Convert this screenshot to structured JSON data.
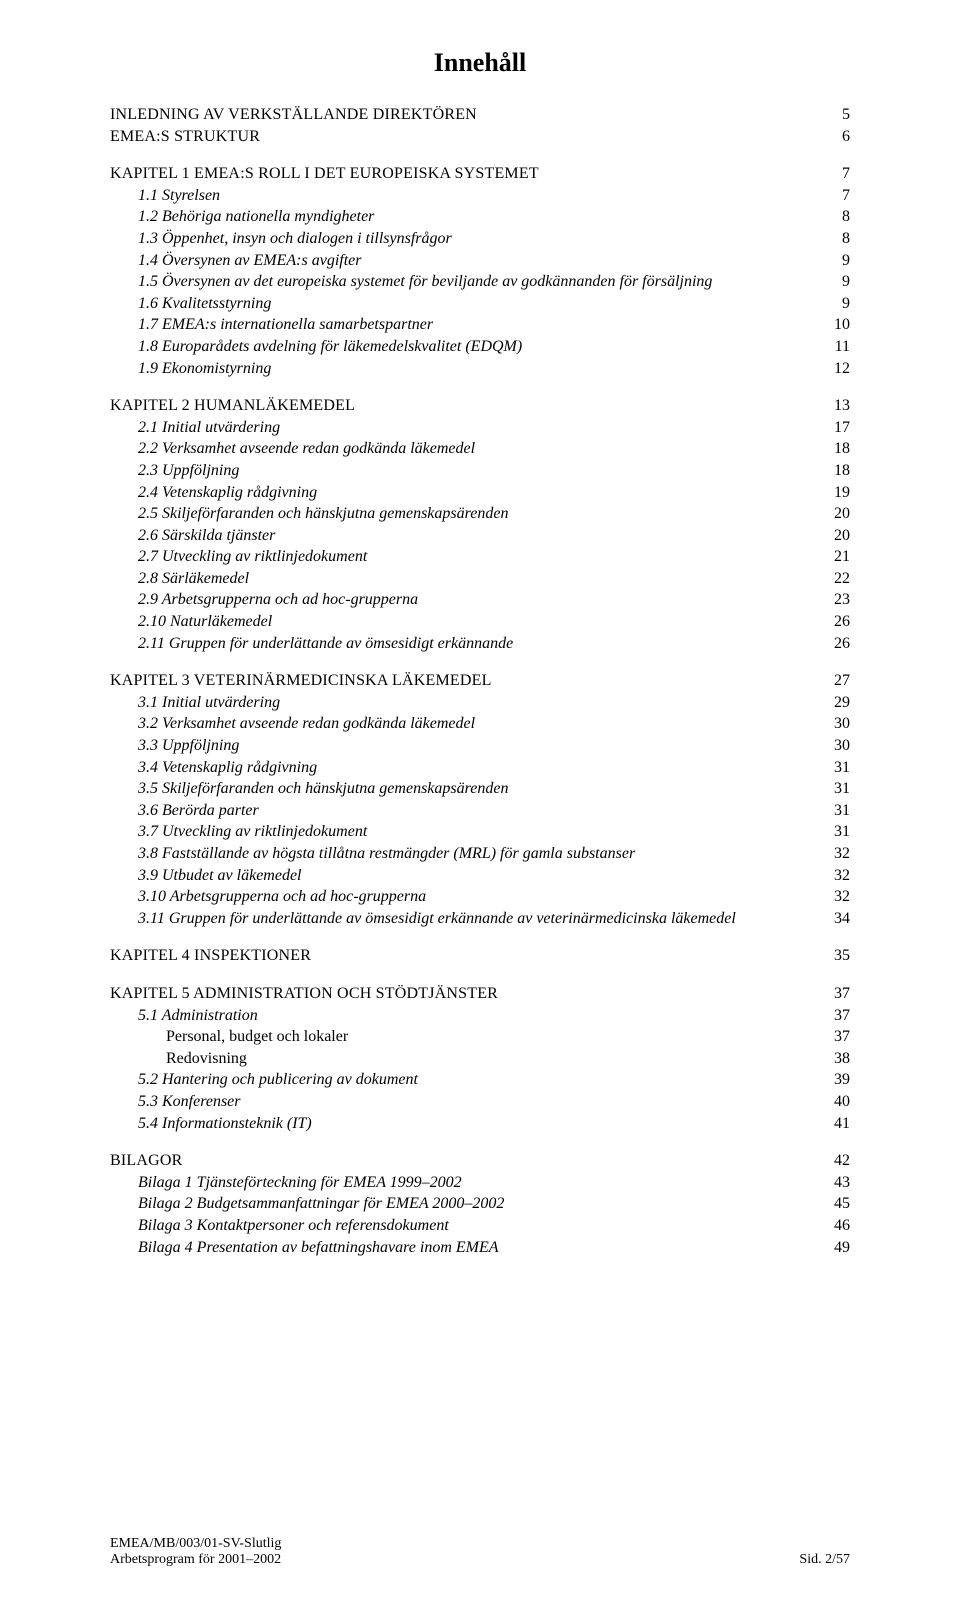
{
  "title": "Innehåll",
  "front": [
    {
      "label": "INLEDNING AV VERKSTÄLLANDE DIREKTÖREN",
      "page": "5"
    },
    {
      "label": "EMEA:S STRUKTUR",
      "page": "6"
    }
  ],
  "chapter1": {
    "heading": {
      "label": "KAPITEL 1  EMEA:S ROLL I DET EUROPEISKA SYSTEMET",
      "page": "7"
    },
    "items": [
      {
        "label": "1.1   Styrelsen",
        "page": "7"
      },
      {
        "label": "1.2   Behöriga nationella myndigheter",
        "page": "8"
      },
      {
        "label": "1.3   Öppenhet, insyn och dialogen i tillsynsfrågor",
        "page": "8"
      },
      {
        "label": "1.4   Översynen av EMEA:s avgifter",
        "page": "9"
      },
      {
        "label": "1.5   Översynen av det europeiska systemet för beviljande av godkännanden för försäljning",
        "page": "9"
      },
      {
        "label": "1.6   Kvalitetsstyrning",
        "page": "9"
      },
      {
        "label": "1.7   EMEA:s internationella samarbetspartner",
        "page": "10"
      },
      {
        "label": "1.8   Europarådets avdelning för läkemedelskvalitet (EDQM)",
        "page": "11"
      },
      {
        "label": "1.9   Ekonomistyrning",
        "page": "12"
      }
    ]
  },
  "chapter2": {
    "heading": {
      "label": "KAPITEL 2  HUMANLÄKEMEDEL",
      "page": "13"
    },
    "items": [
      {
        "label": "2.1   Initial utvärdering",
        "page": "17"
      },
      {
        "label": "2.2   Verksamhet avseende redan godkända läkemedel",
        "page": "18"
      },
      {
        "label": "2.3   Uppföljning",
        "page": "18"
      },
      {
        "label": "2.4   Vetenskaplig rådgivning",
        "page": "19"
      },
      {
        "label": "2.5   Skiljeförfaranden och hänskjutna gemenskapsärenden",
        "page": "20"
      },
      {
        "label": "2.6   Särskilda tjänster",
        "page": "20"
      },
      {
        "label": "2.7   Utveckling av riktlinjedokument",
        "page": "21"
      },
      {
        "label": "2.8   Särläkemedel",
        "page": "22"
      },
      {
        "label": "2.9   Arbetsgrupperna och ad hoc-grupperna",
        "page": "23"
      },
      {
        "label": "2.10   Naturläkemedel",
        "page": "26"
      },
      {
        "label": "2.11   Gruppen för underlättande av ömsesidigt erkännande",
        "page": "26"
      }
    ]
  },
  "chapter3": {
    "heading": {
      "label": "KAPITEL 3  VETERINÄRMEDICINSKA LÄKEMEDEL",
      "page": "27"
    },
    "items": [
      {
        "label": "3.1   Initial utvärdering",
        "page": "29"
      },
      {
        "label": "3.2   Verksamhet avseende redan godkända läkemedel",
        "page": "30"
      },
      {
        "label": "3.3   Uppföljning",
        "page": "30"
      },
      {
        "label": "3.4   Vetenskaplig rådgivning",
        "page": "31"
      },
      {
        "label": "3.5   Skiljeförfaranden och hänskjutna gemenskapsärenden",
        "page": "31"
      },
      {
        "label": "3.6   Berörda parter",
        "page": "31"
      },
      {
        "label": "3.7   Utveckling av riktlinjedokument",
        "page": "31"
      },
      {
        "label": "3.8   Fastställande av högsta tillåtna restmängder (MRL) för gamla substanser",
        "page": "32"
      },
      {
        "label": "3.9   Utbudet av läkemedel",
        "page": "32"
      },
      {
        "label": "3.10   Arbetsgrupperna och ad hoc-grupperna",
        "page": "32"
      },
      {
        "label": "3.11   Gruppen för underlättande av ömsesidigt erkännande av veterinärmedicinska läkemedel",
        "page": "34"
      }
    ]
  },
  "chapter4": {
    "heading": {
      "label": "KAPITEL 4  INSPEKTIONER",
      "page": "35"
    }
  },
  "chapter5": {
    "heading": {
      "label": "KAPITEL 5  ADMINISTRATION OCH STÖDTJÄNSTER",
      "page": "37"
    },
    "items": [
      {
        "label": "5.1   Administration",
        "page": "37",
        "italic": true,
        "indent": 1
      },
      {
        "label": "Personal, budget och lokaler",
        "page": "37",
        "italic": false,
        "indent": 2
      },
      {
        "label": "Redovisning",
        "page": "38",
        "italic": false,
        "indent": 2
      },
      {
        "label": "5.2   Hantering och publicering av dokument",
        "page": "39",
        "italic": true,
        "indent": 1
      },
      {
        "label": "5.3   Konferenser",
        "page": "40",
        "italic": true,
        "indent": 1
      },
      {
        "label": "5.4   Informationsteknik (IT)",
        "page": "41",
        "italic": true,
        "indent": 1
      }
    ]
  },
  "bilagor": {
    "heading": {
      "label": "BILAGOR",
      "page": "42"
    },
    "items": [
      {
        "label": "Bilaga 1 Tjänsteförteckning för EMEA 1999–2002",
        "page": "43"
      },
      {
        "label": "Bilaga 2 Budgetsammanfattningar för EMEA 2000–2002",
        "page": "45"
      },
      {
        "label": "Bilaga 3 Kontaktpersoner och referensdokument",
        "page": "46"
      },
      {
        "label": "Bilaga 4 Presentation av befattningshavare inom EMEA",
        "page": "49"
      }
    ]
  },
  "footer": {
    "line1": "EMEA/MB/003/01-SV-Slutlig",
    "line2_left": "Arbetsprogram för 2001–2002",
    "line2_right": "Sid. 2/57"
  }
}
